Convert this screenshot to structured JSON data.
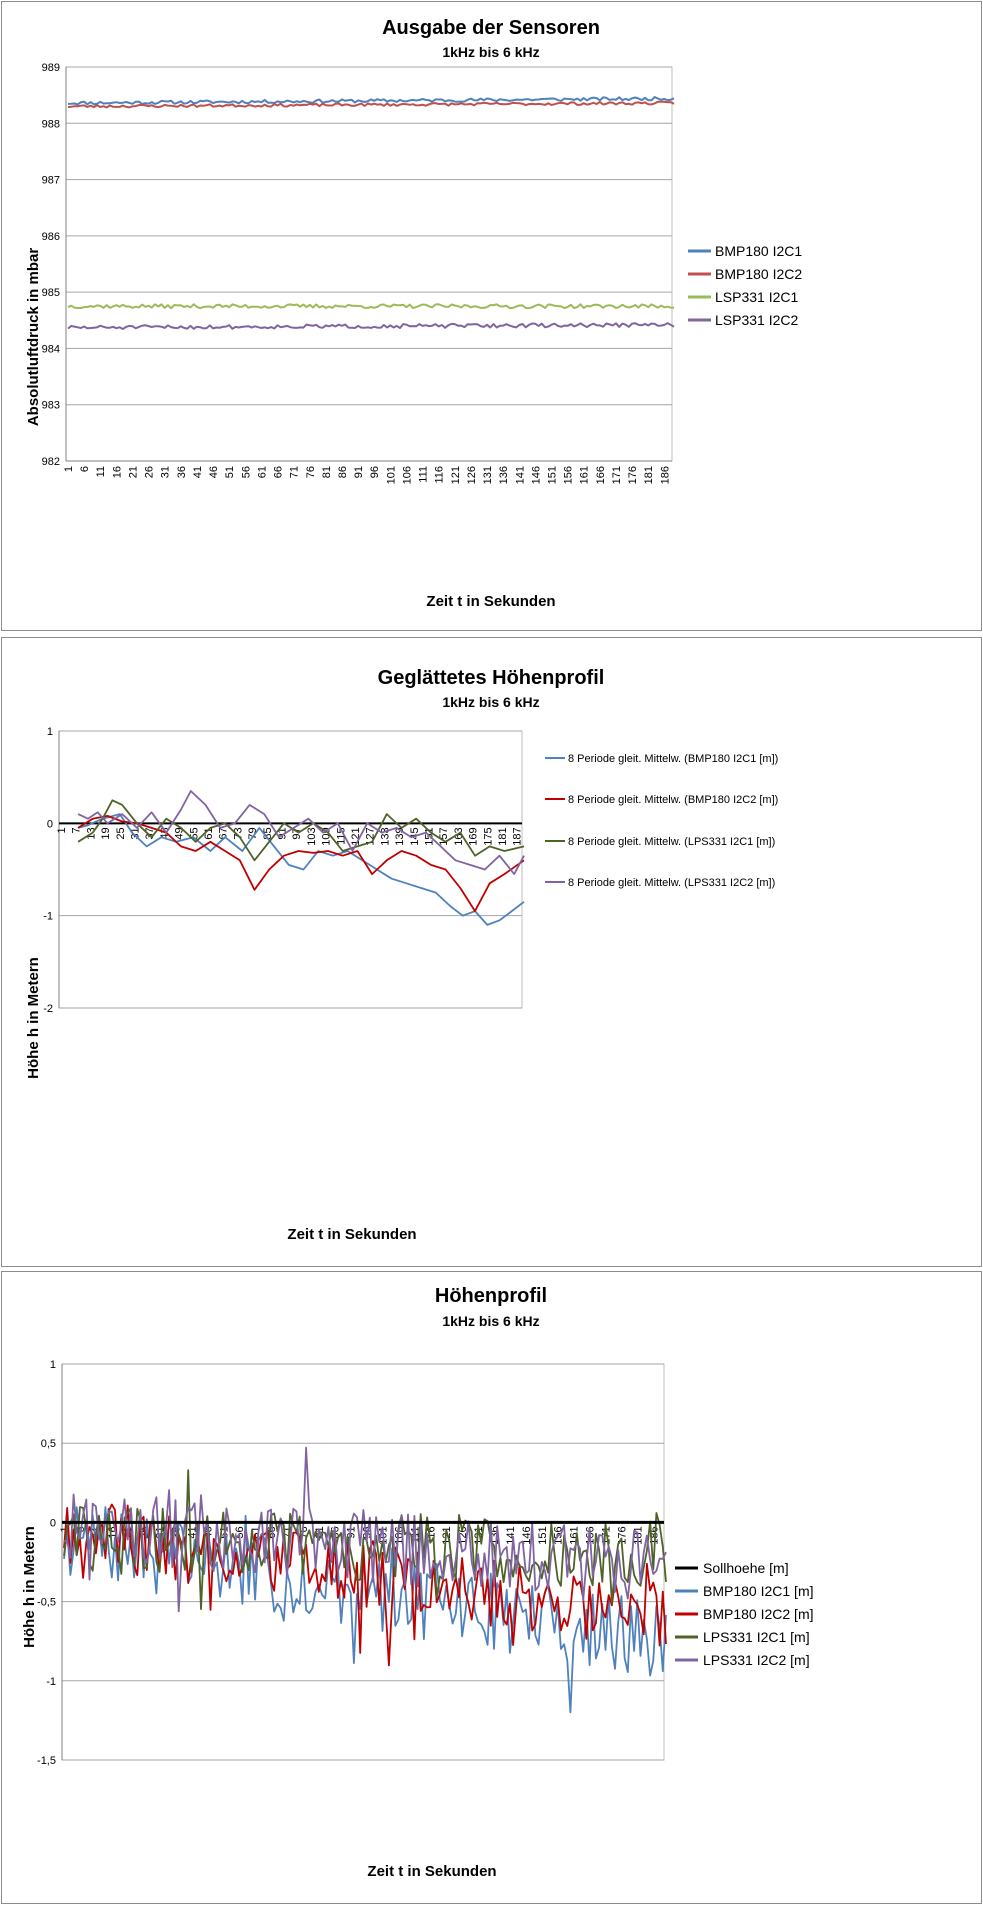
{
  "chart_data": [
    {
      "type": "line",
      "title": "Ausgabe der Sensoren",
      "subtitle": "1kHz bis 6 kHz",
      "xlabel": "Zeit t in Sekunden",
      "ylabel": "Absolutluftdruck in mbar",
      "ylim": [
        982,
        989
      ],
      "yticks": [
        "982",
        "983",
        "984",
        "985",
        "986",
        "987",
        "988",
        "989"
      ],
      "xticks": [
        "1",
        "6",
        "11",
        "16",
        "21",
        "26",
        "31",
        "36",
        "41",
        "46",
        "51",
        "56",
        "61",
        "66",
        "71",
        "76",
        "81",
        "86",
        "91",
        "96",
        "101",
        "106",
        "111",
        "116",
        "121",
        "126",
        "131",
        "136",
        "141",
        "146",
        "151",
        "156",
        "161",
        "166",
        "171",
        "176",
        "181",
        "186"
      ],
      "n_points": 189,
      "legend_position": "right",
      "series": [
        {
          "name": "BMP180 I2C1",
          "color": "#4f81bd",
          "level": 988.36,
          "trend": 0.08,
          "noise": 0.03,
          "seed": 11
        },
        {
          "name": "BMP180 I2C2",
          "color": "#c0504d",
          "level": 988.3,
          "trend": 0.06,
          "noise": 0.025,
          "seed": 23
        },
        {
          "name": "LSP331 I2C1",
          "color": "#9bbb59",
          "level": 984.75,
          "trend": 0.0,
          "noise": 0.035,
          "seed": 37
        },
        {
          "name": "LSP331 I2C2",
          "color": "#8064a2",
          "level": 984.37,
          "trend": 0.05,
          "noise": 0.035,
          "seed": 51
        }
      ]
    },
    {
      "type": "line",
      "title": "Geglättetes Höhenprofil",
      "subtitle": "1kHz bis 6 kHz",
      "xlabel": "Zeit t in Sekunden",
      "ylabel": "Höhe h in Metern",
      "ylim": [
        -2,
        1
      ],
      "yticks": [
        "-2",
        "-1",
        "0",
        "1"
      ],
      "xticks": [
        "1",
        "7",
        "13",
        "19",
        "25",
        "31",
        "37",
        "43",
        "49",
        "55",
        "61",
        "67",
        "73",
        "79",
        "85",
        "91",
        "97",
        "103",
        "109",
        "115",
        "121",
        "127",
        "133",
        "139",
        "145",
        "151",
        "157",
        "163",
        "169",
        "175",
        "181",
        "187"
      ],
      "x_range": [
        1,
        190
      ],
      "legend_position": "right",
      "series": [
        {
          "name": "8 Periode gleit. Mittelw. (BMP180 I2C1 [m])",
          "color": "#4f81bd",
          "x": [
            8,
            12,
            18,
            25,
            30,
            36,
            42,
            48,
            55,
            62,
            68,
            75,
            82,
            88,
            94,
            100,
            106,
            112,
            118,
            124,
            130,
            136,
            142,
            148,
            154,
            160,
            165,
            170,
            175,
            180,
            185,
            190
          ],
          "values": [
            -0.05,
            -0.02,
            0.05,
            0.1,
            -0.1,
            -0.25,
            -0.15,
            -0.2,
            -0.15,
            -0.3,
            -0.15,
            -0.3,
            -0.05,
            -0.25,
            -0.45,
            -0.5,
            -0.3,
            -0.35,
            -0.3,
            -0.4,
            -0.5,
            -0.6,
            -0.65,
            -0.7,
            -0.75,
            -0.9,
            -1.0,
            -0.95,
            -1.1,
            -1.05,
            -0.95,
            -0.85
          ]
        },
        {
          "name": "8 Periode gleit. Mittelw. (BMP180 I2C2 [m])",
          "color": "#c00000",
          "x": [
            8,
            14,
            20,
            26,
            32,
            38,
            44,
            50,
            56,
            62,
            68,
            74,
            80,
            86,
            92,
            98,
            104,
            110,
            116,
            122,
            128,
            134,
            140,
            146,
            152,
            158,
            164,
            170,
            176,
            182,
            190
          ],
          "values": [
            -0.05,
            0.05,
            0.08,
            0.02,
            0.0,
            -0.05,
            -0.1,
            -0.25,
            -0.3,
            -0.2,
            -0.3,
            -0.4,
            -0.72,
            -0.5,
            -0.35,
            -0.3,
            -0.32,
            -0.3,
            -0.35,
            -0.3,
            -0.55,
            -0.4,
            -0.3,
            -0.35,
            -0.45,
            -0.5,
            -0.7,
            -0.95,
            -0.65,
            -0.55,
            -0.4
          ]
        },
        {
          "name": "8 Periode gleit. Mittelw. (LPS331 I2C1 [m])",
          "color": "#4f6228",
          "x": [
            8,
            14,
            18,
            22,
            26,
            32,
            38,
            44,
            50,
            56,
            62,
            68,
            74,
            80,
            86,
            92,
            98,
            104,
            110,
            116,
            122,
            128,
            134,
            140,
            146,
            152,
            158,
            164,
            170,
            176,
            182,
            190
          ],
          "values": [
            -0.2,
            -0.1,
            0.05,
            0.25,
            0.2,
            0.0,
            -0.15,
            0.05,
            -0.05,
            -0.2,
            -0.05,
            0.0,
            -0.15,
            -0.4,
            -0.2,
            0.0,
            -0.1,
            0.0,
            -0.1,
            -0.3,
            -0.25,
            -0.2,
            0.1,
            -0.05,
            0.05,
            -0.1,
            -0.2,
            -0.1,
            -0.35,
            -0.25,
            -0.3,
            -0.25
          ]
        },
        {
          "name": "8 Periode gleit. Mittelw. (LPS331 I2C2 [m])",
          "color": "#8064a2",
          "x": [
            8,
            12,
            16,
            20,
            26,
            32,
            38,
            44,
            50,
            54,
            60,
            66,
            72,
            78,
            84,
            90,
            96,
            102,
            108,
            114,
            120,
            126,
            132,
            138,
            144,
            150,
            156,
            162,
            168,
            174,
            180,
            186,
            190
          ],
          "values": [
            0.1,
            0.05,
            0.12,
            0.0,
            0.1,
            -0.05,
            0.12,
            -0.1,
            0.15,
            0.35,
            0.2,
            -0.05,
            0.0,
            0.2,
            0.1,
            -0.15,
            -0.05,
            0.05,
            -0.1,
            0.0,
            -0.3,
            0.0,
            -0.1,
            -0.05,
            -0.15,
            -0.1,
            -0.25,
            -0.4,
            -0.45,
            -0.5,
            -0.35,
            -0.55,
            -0.35
          ]
        }
      ]
    },
    {
      "type": "line",
      "title": "Höhenprofil",
      "subtitle": "1kHz bis 6 kHz",
      "xlabel": "Zeit t in Sekunden",
      "ylabel": "Höhe h in Metern",
      "ylim": [
        -1.5,
        1
      ],
      "yticks": [
        "-1,5",
        "-1",
        "-0,5",
        "0",
        "0,5",
        "1"
      ],
      "xticks": [
        "1",
        "6",
        "11",
        "16",
        "21",
        "26",
        "31",
        "36",
        "41",
        "46",
        "51",
        "56",
        "61",
        "66",
        "71",
        "76",
        "81",
        "86",
        "91",
        "96",
        "101",
        "106",
        "111",
        "116",
        "121",
        "126",
        "131",
        "136",
        "141",
        "146",
        "151",
        "156",
        "161",
        "166",
        "171",
        "176",
        "181",
        "186"
      ],
      "n_points": 190,
      "legend_position": "right",
      "series": [
        {
          "name": "Sollhoehe [m]",
          "color": "#000000",
          "constant": 0
        },
        {
          "name": "BMP180 I2C1 [m]",
          "color": "#4f81bd",
          "start": -0.1,
          "end": -0.75,
          "noise": 0.25,
          "seed": 7
        },
        {
          "name": "BMP180 I2C2 [m]",
          "color": "#c00000",
          "start": -0.05,
          "end": -0.6,
          "noise": 0.22,
          "seed": 19
        },
        {
          "name": "LPS331 I2C1 [m]",
          "color": "#4f6228",
          "start": -0.1,
          "end": -0.2,
          "noise": 0.22,
          "seed": 29
        },
        {
          "name": "LPS331 I2C2 [m]",
          "color": "#8064a2",
          "start": 0.0,
          "end": -0.3,
          "noise": 0.24,
          "seed": 43
        }
      ]
    }
  ]
}
